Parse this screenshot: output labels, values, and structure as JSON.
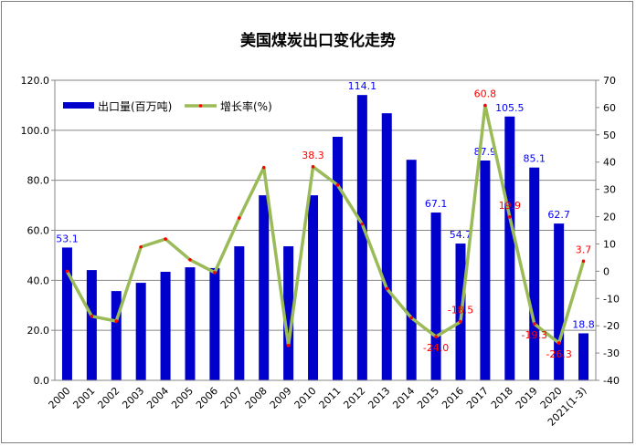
{
  "chart_data": {
    "type": "bar+line",
    "title": "美国煤炭出口变化走势",
    "categories": [
      "2000",
      "2001",
      "2002",
      "2003",
      "2004",
      "2005",
      "2006",
      "2007",
      "2008",
      "2009",
      "2010",
      "2011",
      "2012",
      "2013",
      "2014",
      "2015",
      "2016",
      "2017",
      "2018",
      "2019",
      "2020",
      "2021(1-3)"
    ],
    "series": [
      {
        "name": "出口量(百万吨)",
        "type": "bar",
        "axis": "left",
        "color": "#0000CC",
        "values": [
          53.1,
          44.1,
          35.7,
          39.0,
          43.4,
          45.2,
          44.9,
          53.6,
          74.0,
          53.6,
          74.0,
          97.4,
          114.1,
          106.8,
          88.2,
          67.1,
          54.7,
          87.9,
          105.5,
          85.1,
          62.7,
          18.8
        ],
        "labels": [
          "53.1",
          "",
          "",
          "",
          "",
          "",
          "",
          "",
          "",
          "",
          "",
          "",
          "114.1",
          "",
          "",
          "67.1",
          "54.7",
          "87.9",
          "105.5",
          "85.1",
          "62.7",
          "18.8"
        ]
      },
      {
        "name": "增长率(%)",
        "type": "line",
        "axis": "right",
        "color": "#9BBB59",
        "marker_color": "#FF0000",
        "values": [
          0,
          -16.5,
          -18.3,
          8.9,
          11.8,
          4.2,
          -0.5,
          19.5,
          38.0,
          -27.2,
          38.3,
          31.6,
          17.3,
          -6.4,
          -17.1,
          -24.0,
          -18.5,
          60.8,
          19.9,
          -19.3,
          -26.3,
          3.7
        ],
        "labels": [
          "",
          "",
          "",
          "",
          "",
          "",
          "",
          "",
          "",
          "",
          "38.3",
          "",
          "",
          "",
          "",
          "-24.0",
          "-18.5",
          "60.8",
          "19.9",
          "-19.3",
          "-26.3",
          "3.7"
        ]
      }
    ],
    "left_axis": {
      "ylim": [
        0,
        120
      ],
      "ticks": [
        "0.0",
        "20.0",
        "40.0",
        "60.0",
        "80.0",
        "100.0",
        "120.0"
      ]
    },
    "right_axis": {
      "ylim": [
        -40,
        70
      ],
      "ticks": [
        "-40",
        "-30",
        "-20",
        "-10",
        "0",
        "10",
        "20",
        "30",
        "40",
        "50",
        "60",
        "70"
      ]
    },
    "grid": true,
    "legend": "top-left"
  }
}
